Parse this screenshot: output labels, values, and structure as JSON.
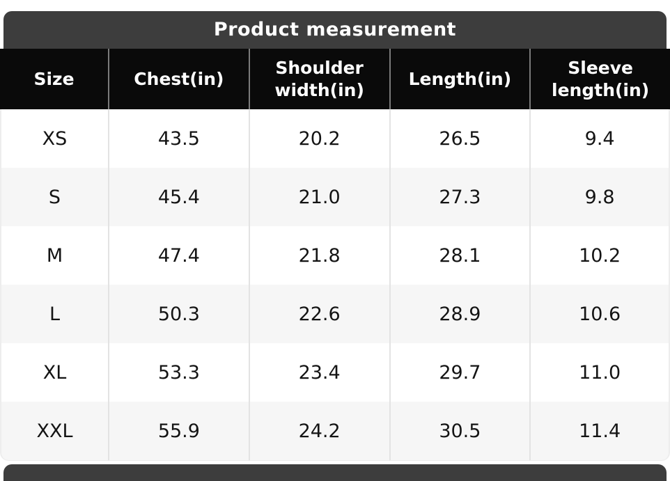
{
  "title": "Product measurement",
  "table": {
    "columns": [
      "Size",
      "Chest(in)",
      "Shoulder width(in)",
      "Length(in)",
      "Sleeve length(in)"
    ],
    "rows": [
      [
        "XS",
        "43.5",
        "20.2",
        "26.5",
        "9.4"
      ],
      [
        "S",
        "45.4",
        "21.0",
        "27.3",
        "9.8"
      ],
      [
        "M",
        "47.4",
        "21.8",
        "28.1",
        "10.2"
      ],
      [
        "L",
        "50.3",
        "22.6",
        "28.9",
        "10.6"
      ],
      [
        "XL",
        "53.3",
        "23.4",
        "29.7",
        "11.0"
      ],
      [
        "XXL",
        "55.9",
        "24.2",
        "30.5",
        "11.4"
      ]
    ]
  },
  "colors": {
    "title_bar_bg": "#3d3d3d",
    "header_bg": "#0a0a0a",
    "header_text": "#ffffff",
    "header_divider": "#7a7a7a",
    "body_divider": "#e3e3e3",
    "row_bg": "#ffffff",
    "row_alt_bg": "#f6f6f6",
    "cell_text": "#141414",
    "page_bg": "#ffffff"
  }
}
